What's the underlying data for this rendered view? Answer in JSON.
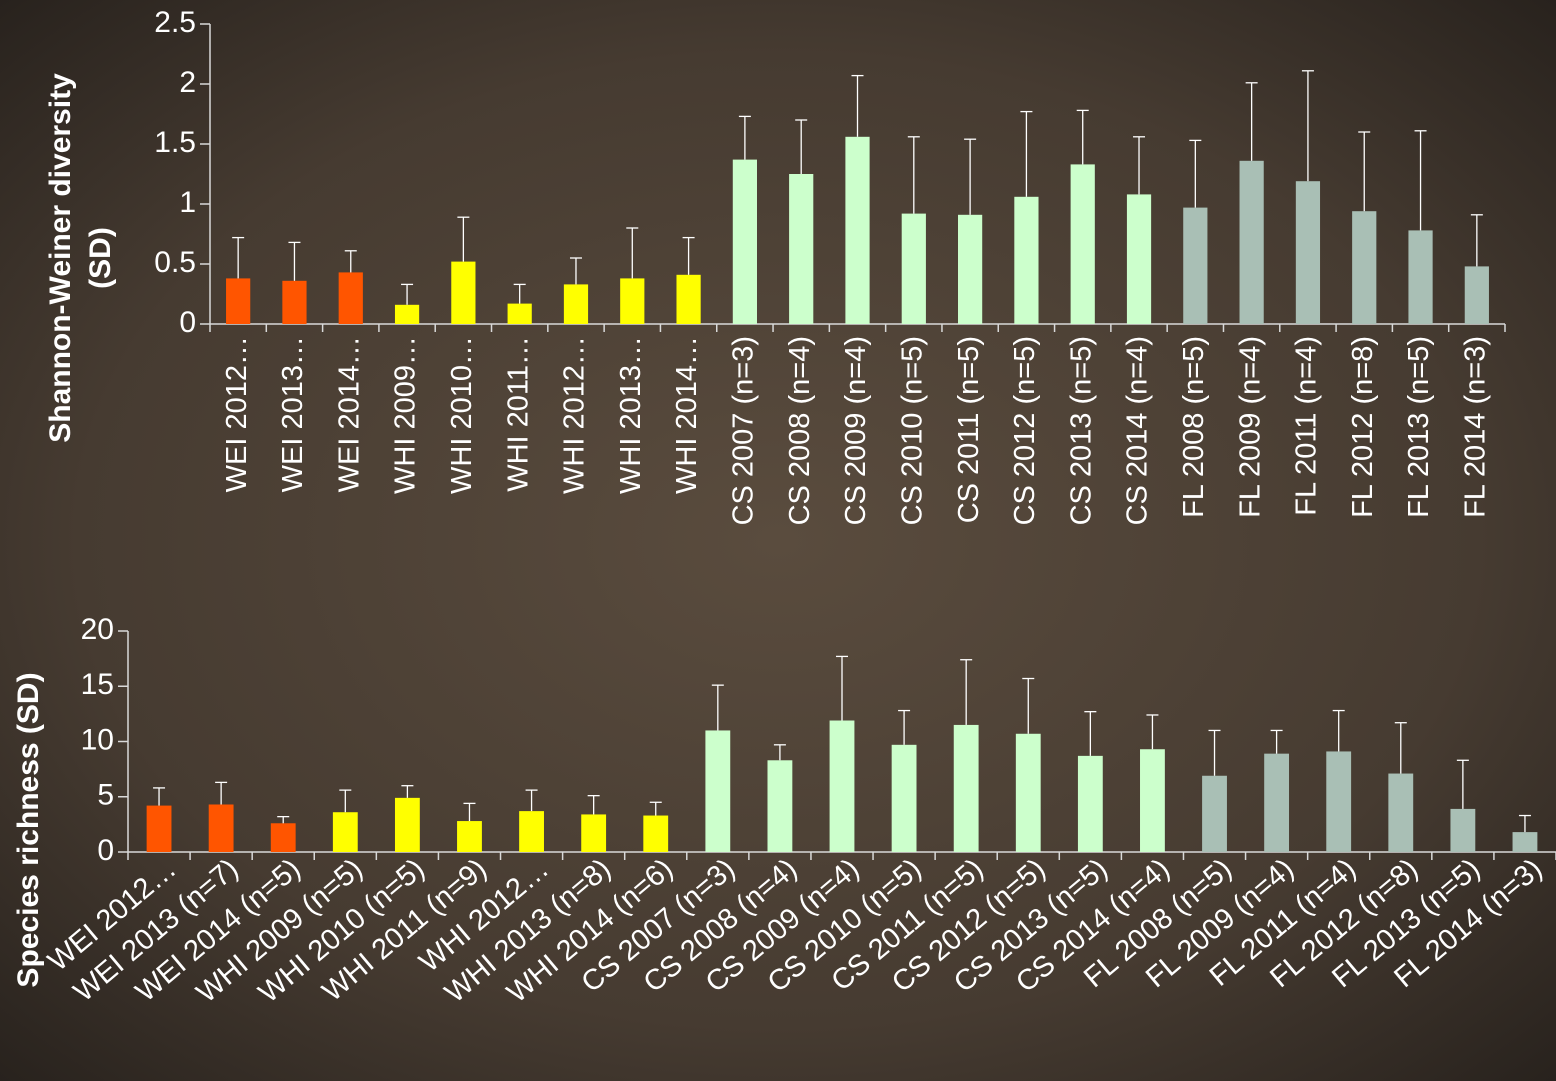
{
  "chart_data": [
    {
      "type": "bar",
      "ylabel": [
        "Shannon-Weiner diversity",
        "(SD)"
      ],
      "categories": [
        "WEI 2012…",
        "WEI 2013…",
        "WEI 2014…",
        "WHI 2009…",
        "WHI 2010…",
        "WHI 2011…",
        "WHI 2012…",
        "WHI 2013…",
        "WHI 2014…",
        "CS 2007 (n=3)",
        "CS 2008 (n=4)",
        "CS 2009 (n=4)",
        "CS 2010 (n=5)",
        "CS 2011 (n=5)",
        "CS 2012 (n=5)",
        "CS 2013 (n=5)",
        "CS 2014 (n=4)",
        "FL 2008 (n=5)",
        "FL 2009 (n=4)",
        "FL 2011 (n=4)",
        "FL 2012 (n=8)",
        "FL 2013 (n=5)",
        "FL 2014 (n=3)"
      ],
      "values": [
        0.38,
        0.36,
        0.43,
        0.16,
        0.52,
        0.17,
        0.33,
        0.38,
        0.41,
        1.37,
        1.25,
        1.56,
        0.92,
        0.91,
        1.06,
        1.33,
        1.08,
        0.97,
        1.36,
        1.19,
        0.94,
        0.78,
        0.48
      ],
      "errors": [
        0.34,
        0.32,
        0.18,
        0.17,
        0.37,
        0.16,
        0.22,
        0.42,
        0.31,
        0.36,
        0.45,
        0.51,
        0.64,
        0.63,
        0.71,
        0.45,
        0.48,
        0.56,
        0.65,
        0.92,
        0.66,
        0.83,
        0.43
      ],
      "colors": [
        "#ff5500",
        "#ff5500",
        "#ff5500",
        "#ffff00",
        "#ffff00",
        "#ffff00",
        "#ffff00",
        "#ffff00",
        "#ffff00",
        "#ccffcc",
        "#ccffcc",
        "#ccffcc",
        "#ccffcc",
        "#ccffcc",
        "#ccffcc",
        "#ccffcc",
        "#ccffcc",
        "#a9bfb5",
        "#a9bfb5",
        "#a9bfb5",
        "#a9bfb5",
        "#a9bfb5",
        "#a9bfb5"
      ],
      "ylim": [
        0,
        2.5
      ],
      "yticks": [
        0,
        0.5,
        1,
        1.5,
        2,
        2.5
      ]
    },
    {
      "type": "bar",
      "ylabel": [
        "Species richness (SD)"
      ],
      "categories": [
        "WEI 2012…",
        "WEI 2013 (n=7)",
        "WEI 2014 (n=5)",
        "WHI 2009 (n=5)",
        "WHI 2010 (n=5)",
        "WHI 2011 (n=9)",
        "WHI 2012…",
        "WHI 2013 (n=8)",
        "WHI 2014 (n=6)",
        "CS 2007 (n=3)",
        "CS 2008 (n=4)",
        "CS 2009 (n=4)",
        "CS 2010 (n=5)",
        "CS 2011 (n=5)",
        "CS 2012 (n=5)",
        "CS 2013 (n=5)",
        "CS 2014 (n=4)",
        "FL 2008 (n=5)",
        "FL 2009 (n=4)",
        "FL 2011 (n=4)",
        "FL 2012 (n=8)",
        "FL 2013 (n=5)",
        "FL 2014 (n=3)"
      ],
      "values": [
        4.2,
        4.3,
        2.6,
        3.6,
        4.9,
        2.8,
        3.7,
        3.4,
        3.3,
        11.0,
        8.3,
        11.9,
        9.7,
        11.5,
        10.7,
        8.7,
        9.3,
        6.9,
        8.9,
        9.1,
        7.1,
        3.9,
        1.8
      ],
      "errors": [
        1.6,
        2.0,
        0.6,
        2.0,
        1.1,
        1.6,
        1.9,
        1.7,
        1.2,
        4.1,
        1.4,
        5.8,
        3.1,
        5.9,
        5.0,
        4.0,
        3.1,
        4.1,
        2.1,
        3.7,
        4.6,
        4.4,
        1.5
      ],
      "colors": [
        "#ff5500",
        "#ff5500",
        "#ff5500",
        "#ffff00",
        "#ffff00",
        "#ffff00",
        "#ffff00",
        "#ffff00",
        "#ffff00",
        "#ccffcc",
        "#ccffcc",
        "#ccffcc",
        "#ccffcc",
        "#ccffcc",
        "#ccffcc",
        "#ccffcc",
        "#ccffcc",
        "#a9bfb5",
        "#a9bfb5",
        "#a9bfb5",
        "#a9bfb5",
        "#a9bfb5",
        "#a9bfb5"
      ],
      "ylim": [
        0,
        20
      ],
      "yticks": [
        0,
        5,
        10,
        15,
        20
      ]
    }
  ]
}
